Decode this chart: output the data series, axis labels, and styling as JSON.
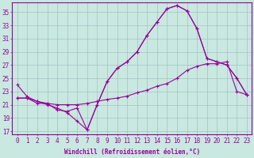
{
  "xlabel": "Windchill (Refroidissement éolien,°C)",
  "bg_color": "#c8e8e0",
  "line_color": "#990099",
  "grid_color": "#9ababa",
  "xlim_min": -0.5,
  "xlim_max": 23.5,
  "ylim_min": 16.5,
  "ylim_max": 36.5,
  "xticks": [
    0,
    1,
    2,
    3,
    4,
    5,
    6,
    7,
    8,
    9,
    10,
    11,
    12,
    13,
    14,
    15,
    16,
    17,
    18,
    19,
    20,
    21,
    22,
    23
  ],
  "yticks": [
    17,
    19,
    21,
    23,
    25,
    27,
    29,
    31,
    33,
    35
  ],
  "line1_x": [
    0,
    1,
    2,
    3,
    4,
    5,
    6,
    7,
    8,
    9,
    10,
    11,
    12,
    13,
    14,
    15,
    16,
    17,
    18,
    19,
    20,
    21,
    22,
    23
  ],
  "line1_y": [
    24.0,
    22.2,
    21.5,
    21.0,
    20.5,
    19.8,
    18.5,
    17.2,
    21.0,
    24.5,
    26.5,
    27.5,
    29.0,
    31.5,
    33.5,
    35.5,
    36.0,
    35.2,
    32.5,
    28.0,
    27.5,
    27.0,
    25.0,
    22.5
  ],
  "line2_x": [
    0,
    1,
    2,
    3,
    4,
    5,
    6,
    7,
    8,
    9,
    10,
    11,
    12,
    13,
    14,
    15,
    16,
    17,
    18,
    19,
    20,
    21,
    22,
    23
  ],
  "line2_y": [
    22.0,
    22.0,
    21.2,
    21.2,
    20.2,
    20.0,
    20.5,
    17.2,
    21.0,
    24.5,
    26.5,
    27.5,
    29.0,
    31.5,
    33.5,
    35.5,
    36.0,
    35.2,
    32.5,
    28.0,
    27.5,
    27.0,
    25.0,
    22.5
  ],
  "line3_x": [
    0,
    1,
    2,
    3,
    4,
    5,
    6,
    7,
    8,
    9,
    10,
    11,
    12,
    13,
    14,
    15,
    16,
    17,
    18,
    19,
    20,
    21,
    22,
    23
  ],
  "line3_y": [
    22.0,
    22.0,
    21.5,
    21.2,
    21.0,
    21.0,
    21.0,
    21.2,
    21.5,
    21.8,
    22.0,
    22.3,
    22.8,
    23.2,
    23.8,
    24.2,
    25.0,
    26.2,
    26.8,
    27.2,
    27.2,
    27.5,
    23.0,
    22.5
  ],
  "xlabel_fontsize": 5.5,
  "tick_fontsize": 5.5,
  "linewidth": 0.8,
  "markersize": 2.0
}
